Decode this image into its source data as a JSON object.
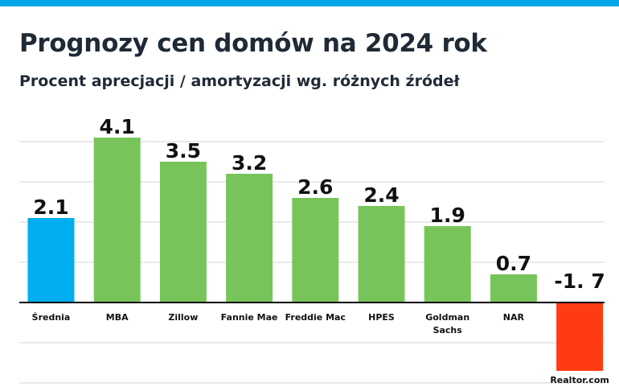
{
  "colors": {
    "top_bar": "#00a6e8",
    "average": "#00aeef",
    "positive": "#77c55a",
    "negative": "#ff3c11",
    "negative_label": "#ff3c11",
    "label": "#111111",
    "grid": "#d6d6d6",
    "axis": "#000000"
  },
  "chart_data": {
    "type": "bar",
    "title": "Prognozy cen domów na 2024 rok",
    "subtitle": "Procent aprecjacji / amortyzacji wg. różnych źródeł",
    "categories": [
      [
        "Średnia"
      ],
      [
        "MBA"
      ],
      [
        "Zillow"
      ],
      [
        "Fannie Mae"
      ],
      [
        "Freddie Mac"
      ],
      [
        "HPES"
      ],
      [
        "Goldman",
        "Sachs"
      ],
      [
        "NAR"
      ],
      [
        "Realtor.com"
      ]
    ],
    "values": [
      2.1,
      4.1,
      3.5,
      3.2,
      2.6,
      2.4,
      1.9,
      0.7,
      -1.7
    ],
    "value_labels": [
      "2.1",
      "4.1",
      "3.5",
      "3.2",
      "2.6",
      "2.4",
      "1.9",
      "0.7",
      "-1. 7"
    ],
    "highlight_index": 0,
    "ylim": [
      -2,
      5
    ],
    "gridline_step": 1,
    "grid": true,
    "legend": "none"
  }
}
